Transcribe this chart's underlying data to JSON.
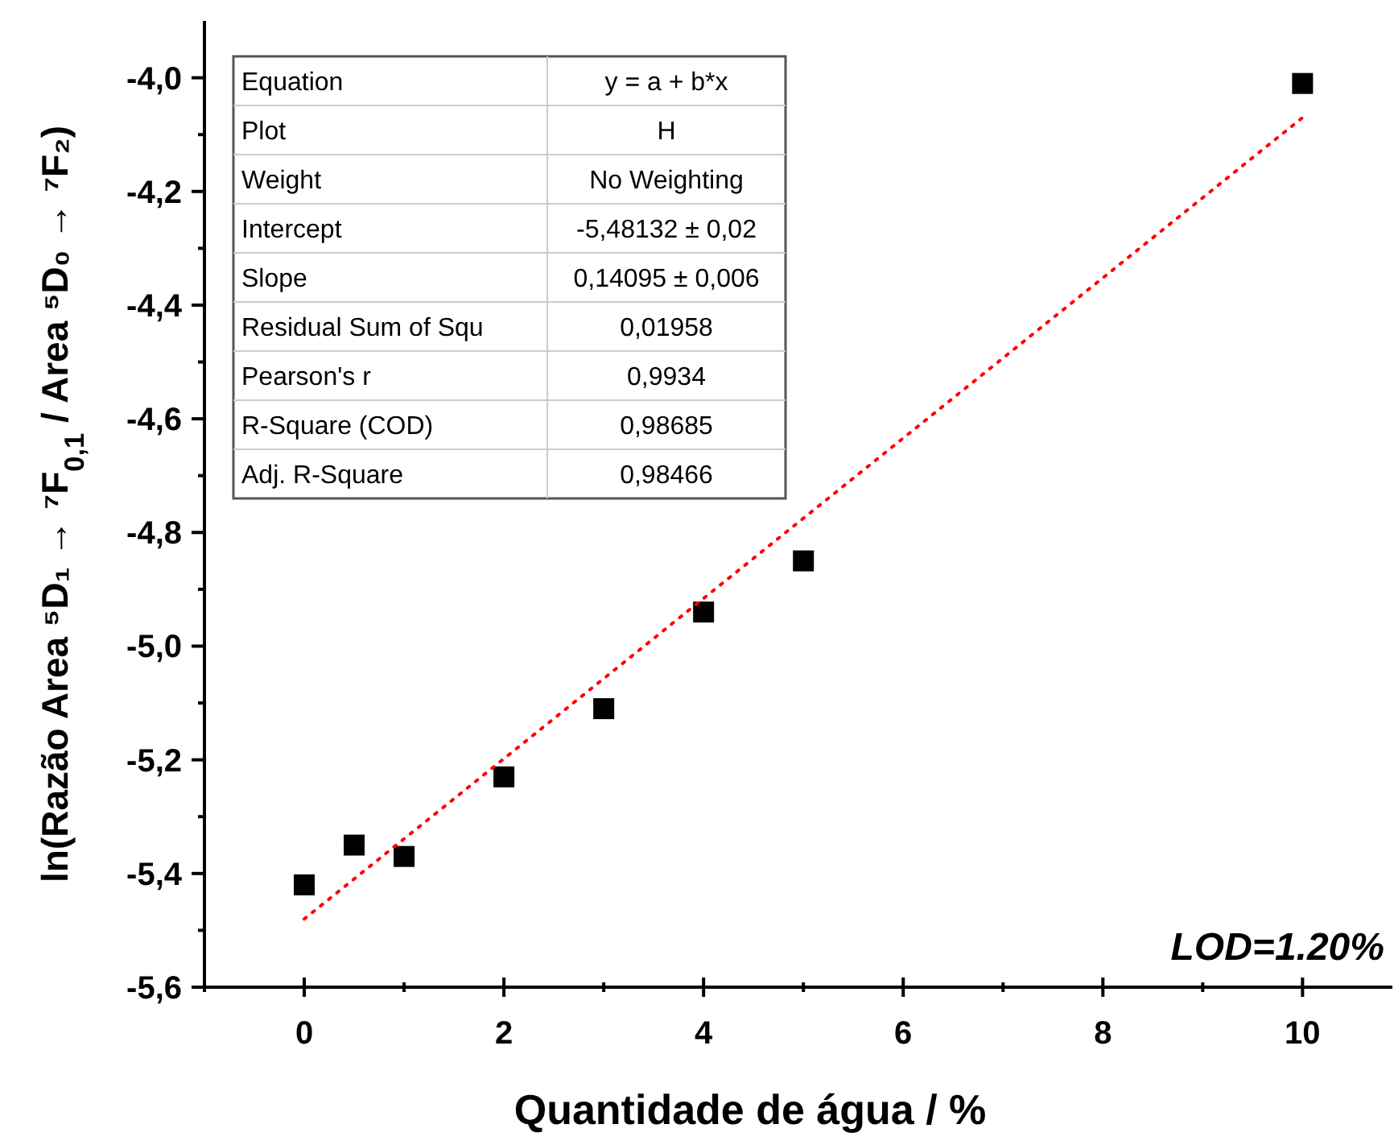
{
  "chart_data": {
    "type": "scatter",
    "xlabel": "Quantidade de água / %",
    "ylabel": "ln(Razão  Area ⁵D₁ → ⁷F$_{0,1}$ / Area ⁵D₀ → ⁷F₂)",
    "x": [
      0,
      0.5,
      1,
      2,
      3,
      4,
      5,
      10
    ],
    "series": [
      {
        "color": "#000000",
        "marker": "square",
        "values": [
          -5.42,
          -5.35,
          -5.37,
          -5.23,
          -5.11,
          -4.94,
          -4.85,
          -4.01
        ]
      },
      {
        "type": "line",
        "color": "#ff0000",
        "marker": "none",
        "line_style": "dotted",
        "x": [
          0,
          10
        ],
        "values": [
          -5.48,
          -4.07
        ]
      }
    ],
    "xlim": [
      -1,
      10.9
    ],
    "xticks": [
      {
        "value": -1,
        "label": null
      },
      0,
      {
        "value": 1,
        "label": null
      },
      2,
      {
        "value": 3,
        "label": null
      },
      4,
      {
        "value": 5,
        "label": null
      },
      6,
      {
        "value": 7,
        "label": null
      },
      8,
      {
        "value": 9,
        "label": null
      },
      10
    ],
    "ylim": [
      -5.6,
      -3.9
    ],
    "yticks": [
      {
        "value": -5.6,
        "label": "-5,6"
      },
      {
        "value": -5.5,
        "label": null
      },
      {
        "value": -5.4,
        "label": "-5,4"
      },
      {
        "value": -5.3,
        "label": null
      },
      {
        "value": -5.2,
        "label": "-5,2"
      },
      {
        "value": -5.1,
        "label": null
      },
      {
        "value": -5.0,
        "label": "-5,0"
      },
      {
        "value": -4.9,
        "label": null
      },
      {
        "value": -4.8,
        "label": "-4,8"
      },
      {
        "value": -4.7,
        "label": null
      },
      {
        "value": -4.6,
        "label": "-4,6"
      },
      {
        "value": -4.5,
        "label": null
      },
      {
        "value": -4.4,
        "label": "-4,4"
      },
      {
        "value": -4.3,
        "label": null
      },
      {
        "value": -4.2,
        "label": "-4,2"
      },
      {
        "value": -4.1,
        "label": null
      },
      {
        "value": -4.0,
        "label": "-4,0"
      }
    ],
    "grid": false,
    "annotations": [
      "Equation",
      "y = a + b*x",
      "Plot",
      "H",
      "Weight",
      "No Weighting",
      "Intercept",
      "-5,48132 ± 0,02",
      "Slope",
      "0,14095 ± 0,006",
      "Residual Sum of Squ",
      "0,01958",
      "Pearson's r",
      "0,9934",
      "R-Square (COD)",
      "0,98685",
      "Adj. R-Square",
      "0,98466",
      "LOD=1.20%"
    ]
  }
}
